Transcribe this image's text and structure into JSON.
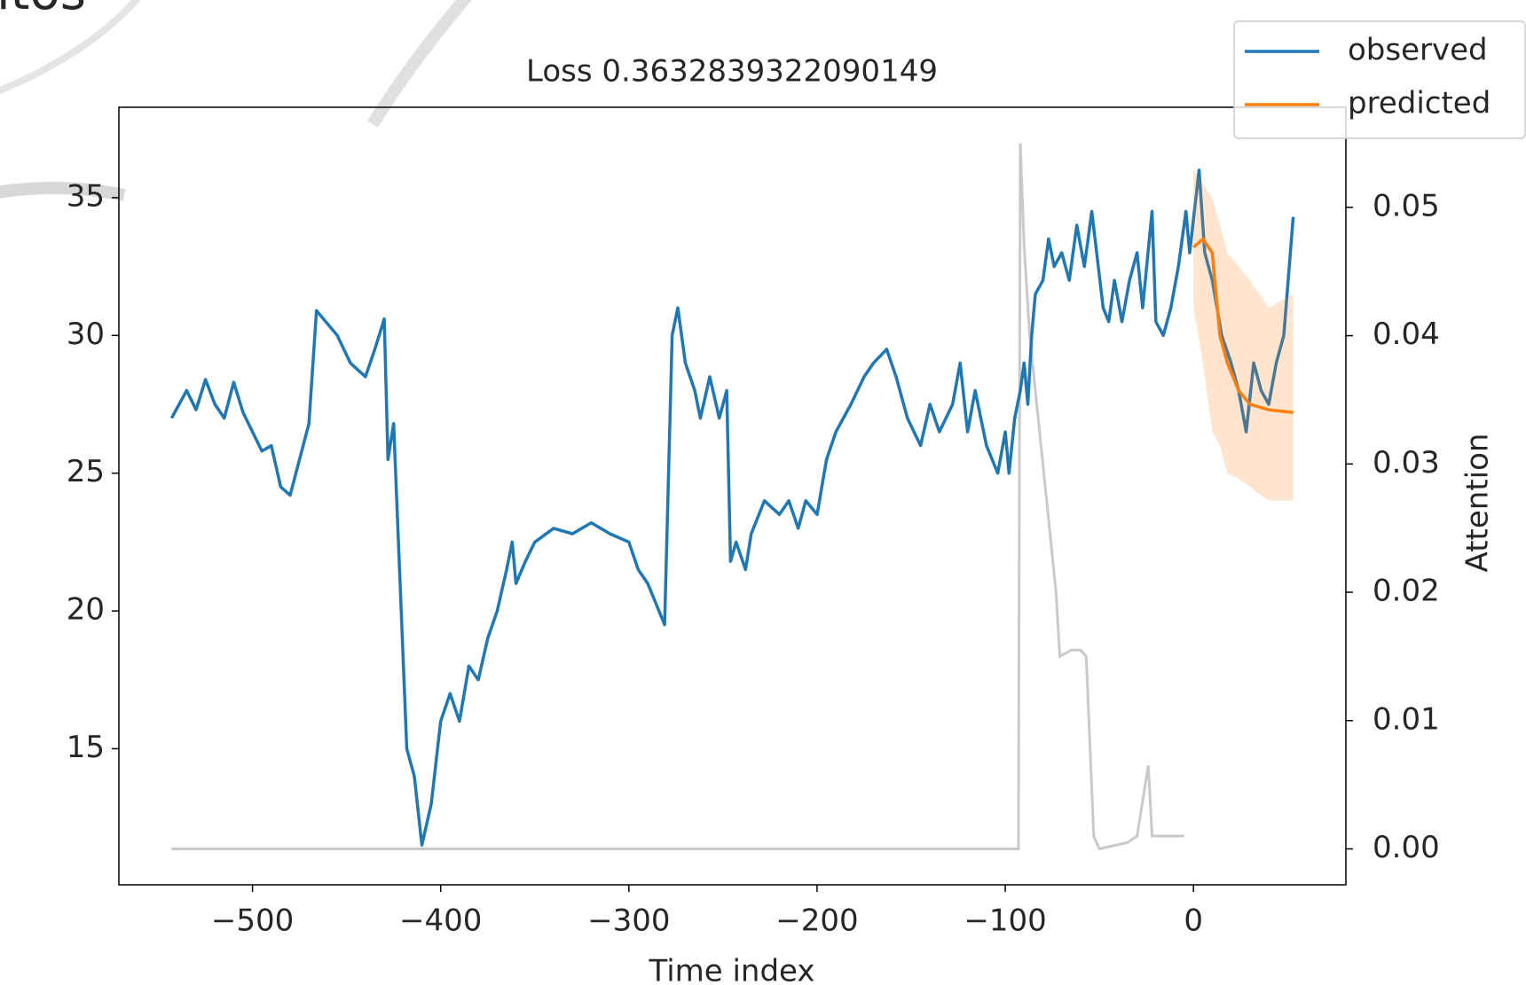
{
  "chart_data": {
    "type": "line",
    "title": "Loss 0.3632839322090149",
    "annotations": [
      "itos"
    ],
    "xlabel": "Time index",
    "y2label": "Attention",
    "xlim": [
      -571,
      81
    ],
    "ylim": [
      10.06,
      38.28
    ],
    "y2lim": [
      -0.0028,
      0.0578
    ],
    "xticks": [
      {
        "value": -500,
        "label": "−500"
      },
      {
        "value": -400,
        "label": "−400"
      },
      {
        "value": -300,
        "label": "−300"
      },
      {
        "value": -200,
        "label": "−200"
      },
      {
        "value": -100,
        "label": "−100"
      },
      0
    ],
    "yticks": [
      15,
      20,
      25,
      30,
      35
    ],
    "y2ticks": [
      {
        "value": 0,
        "label": "0.00"
      },
      {
        "value": 0.01,
        "label": "0.01"
      },
      {
        "value": 0.02,
        "label": "0.02"
      },
      {
        "value": 0.03,
        "label": "0.03"
      },
      {
        "value": 0.04,
        "label": "0.04"
      },
      {
        "value": 0.05,
        "label": "0.05"
      }
    ],
    "legend": "upper right",
    "series": [
      {
        "name": "observed",
        "color": "#1f77b4",
        "x": [
          -543,
          -535,
          -530,
          -525,
          -520,
          -515,
          -510,
          -505,
          -500,
          -495,
          -490,
          -485,
          -480,
          -475,
          -470,
          -466,
          -455,
          -448,
          -440,
          -435,
          -430,
          -428,
          -425,
          -418,
          -414,
          -410,
          -405,
          -400,
          -395,
          -390,
          -385,
          -380,
          -375,
          -370,
          -365,
          -362,
          -360,
          -355,
          -350,
          -340,
          -330,
          -320,
          -310,
          -300,
          -295,
          -290,
          -281,
          -277,
          -274,
          -270,
          -265,
          -262,
          -257,
          -252,
          -248,
          -246,
          -243,
          -238,
          -235,
          -228,
          -220,
          -215,
          -210,
          -206,
          -200,
          -195,
          -190,
          -182,
          -175,
          -170,
          -163,
          -158,
          -152,
          -145,
          -140,
          -135,
          -128,
          -124,
          -120,
          -116,
          -110,
          -104,
          -100,
          -98,
          -95,
          -92,
          -90,
          -88,
          -86,
          -84,
          -80,
          -77,
          -74,
          -70,
          -66,
          -62,
          -58,
          -54,
          -48,
          -45,
          -42,
          -38,
          -34,
          -30,
          -27,
          -22,
          -20,
          -16,
          -12,
          -8,
          -4,
          -2,
          3,
          6,
          10,
          15,
          20,
          24,
          28,
          32,
          36,
          40,
          44,
          48,
          53
        ],
        "values": [
          27,
          28,
          27.3,
          28.4,
          27.5,
          27,
          28.3,
          27.2,
          26.5,
          25.8,
          26,
          24.5,
          24.2,
          25.5,
          26.8,
          30.9,
          30,
          29,
          28.5,
          29.5,
          30.6,
          25.5,
          26.8,
          15,
          14,
          11.5,
          13,
          16,
          17,
          16,
          18,
          17.5,
          19,
          20,
          21.5,
          22.5,
          21,
          21.8,
          22.5,
          23,
          22.8,
          23.2,
          22.8,
          22.5,
          21.5,
          21,
          19.5,
          30,
          31,
          29,
          28,
          27,
          28.5,
          27,
          28,
          21.8,
          22.5,
          21.5,
          22.8,
          24,
          23.5,
          24,
          23,
          24,
          23.5,
          25.5,
          26.5,
          27.5,
          28.5,
          29,
          29.5,
          28.5,
          27,
          26,
          27.5,
          26.5,
          27.5,
          29,
          26.5,
          28,
          26,
          25,
          26.5,
          25,
          27,
          28,
          29,
          27.5,
          30,
          31.5,
          32,
          33.5,
          32.5,
          33,
          32,
          34,
          32.5,
          34.5,
          31,
          30.5,
          32,
          30.5,
          32,
          33,
          31,
          34.5,
          30.5,
          30,
          31,
          32.5,
          34.5,
          33,
          36,
          33,
          32,
          30,
          29,
          28,
          26.5,
          29,
          28,
          27.5,
          29,
          30,
          34.3
        ]
      },
      {
        "name": "predicted",
        "color": "#ff7f0e",
        "x": [
          0,
          5,
          10,
          14,
          18,
          24,
          30,
          40,
          53
        ],
        "values": [
          33.2,
          33.5,
          33,
          30,
          29,
          28,
          27.5,
          27.3,
          27.2
        ],
        "lower": [
          31,
          29,
          26.5,
          26,
          25,
          24.8,
          24.5,
          24,
          24
        ],
        "upper": [
          36,
          35.5,
          35,
          34,
          33,
          32.5,
          32,
          31,
          31.5
        ]
      }
    ],
    "attention": {
      "axis": "y2",
      "color": "#bbbbbb",
      "x": [
        -543,
        -93,
        -92,
        -90,
        -87,
        -80,
        -73,
        -71,
        -65,
        -60,
        -57,
        -53,
        -50,
        -35,
        -30,
        -24,
        -22,
        -12,
        -5
      ],
      "values": [
        0,
        0,
        0.055,
        0.047,
        0.04,
        0.03,
        0.02,
        0.015,
        0.0155,
        0.0155,
        0.015,
        0.001,
        0,
        0.0005,
        0.001,
        0.0065,
        0.001,
        0.001,
        0.001
      ]
    }
  }
}
